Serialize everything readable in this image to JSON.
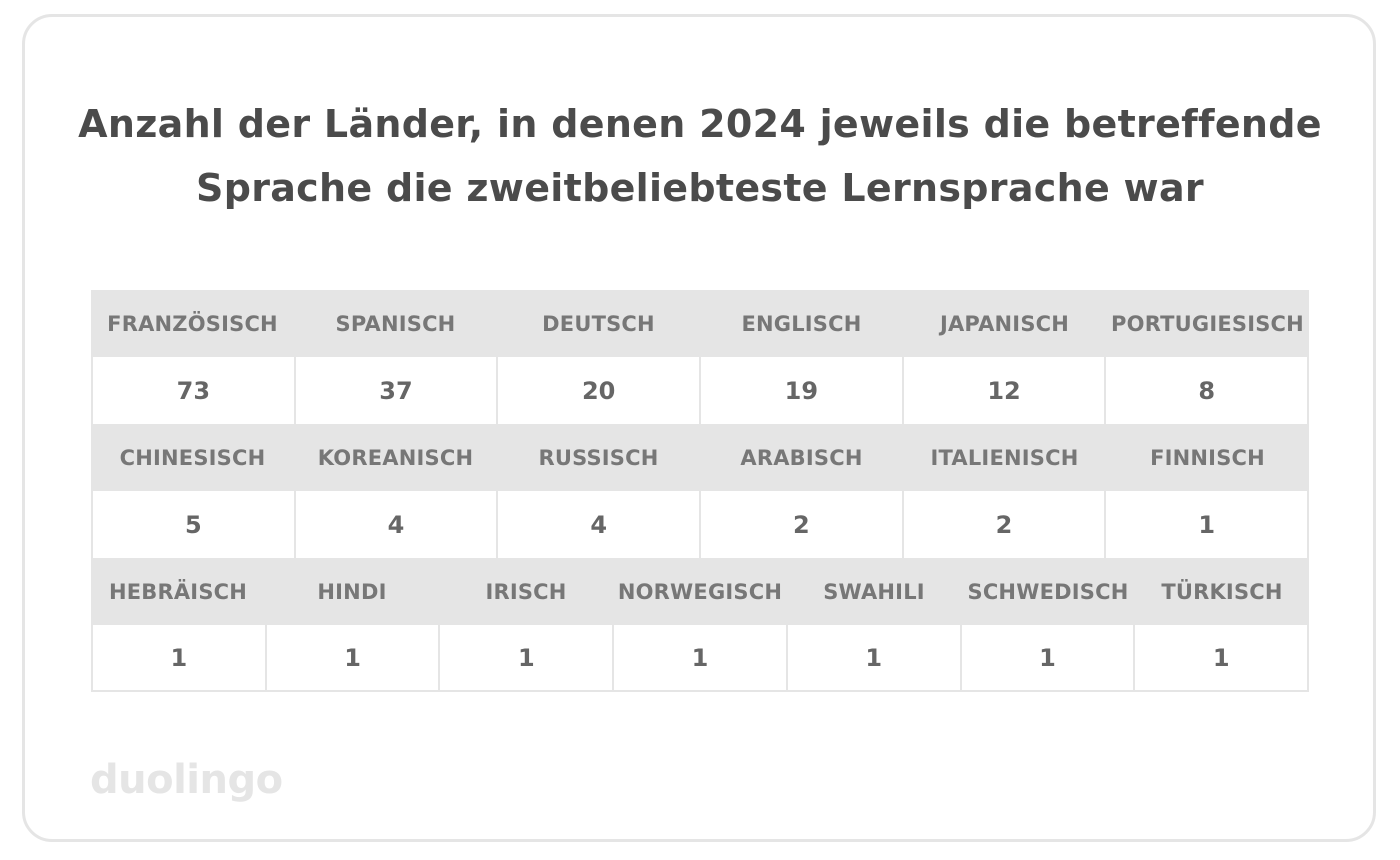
{
  "title": {
    "line1": "Anzahl der Länder, in denen 2024 jeweils die betreffende",
    "line2": "Sprache die zweitbeliebteste Lernsprache war"
  },
  "chart_data": {
    "type": "table",
    "title": "Anzahl der Länder, in denen 2024 jeweils die betreffende Sprache die zweitbeliebteste Lernsprache war",
    "rows": [
      {
        "categories": [
          "FRANZÖSISCH",
          "SPANISCH",
          "DEUTSCH",
          "ENGLISCH",
          "JAPANISCH",
          "PORTUGIESISCH"
        ],
        "values": [
          "73",
          "37",
          "20",
          "19",
          "12",
          "8"
        ]
      },
      {
        "categories": [
          "CHINESISCH",
          "KOREANISCH",
          "RUSSISCH",
          "ARABISCH",
          "ITALIENISCH",
          "FINNISCH"
        ],
        "values": [
          "5",
          "4",
          "4",
          "2",
          "2",
          "1"
        ]
      },
      {
        "categories": [
          "HEBRÄISCH",
          "HINDI",
          "IRISCH",
          "NORWEGISCH",
          "SWAHILI",
          "SCHWEDISCH",
          "TÜRKISCH"
        ],
        "values": [
          "1",
          "1",
          "1",
          "1",
          "1",
          "1",
          "1"
        ]
      }
    ]
  },
  "logo": {
    "text": "duolingo"
  },
  "colors": {
    "header_background": "#e5e5e5",
    "text": "#4b4b4b",
    "border": "#e5e5e5"
  }
}
